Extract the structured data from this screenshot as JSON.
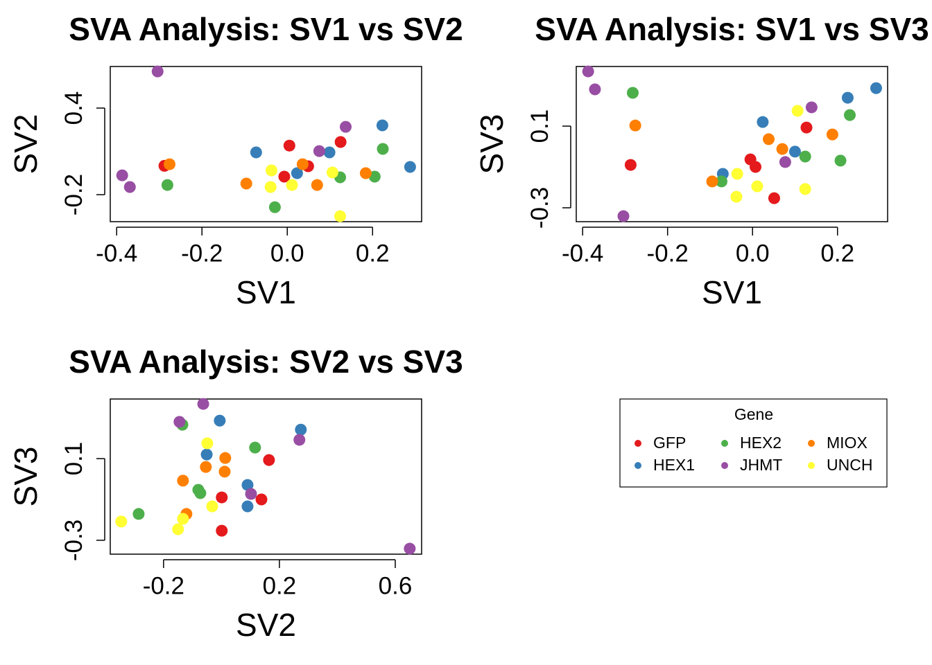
{
  "chart_data": [
    {
      "type": "scatter",
      "title": "SVA Analysis: SV1 vs SV2",
      "xlabel": "SV1",
      "ylabel": "SV2",
      "xlim": [
        -0.415,
        0.315
      ],
      "ylim": [
        -0.387,
        0.688
      ],
      "xticks": [
        -0.4,
        -0.2,
        {
          "value": 0,
          "label": "0.0"
        },
        0.2
      ],
      "yticks": [
        -0.2,
        0.4
      ],
      "series": [
        {
          "name": "GFP",
          "color": "#E41A1C",
          "x": [
            -0.288,
            0.005,
            0.125,
            0.049,
            -0.007
          ],
          "y": [
            0.0,
            0.14,
            0.165,
            -0.003,
            -0.075
          ]
        },
        {
          "name": "HEX1",
          "color": "#377EB8",
          "x": [
            -0.073,
            0.099,
            0.223,
            0.288,
            0.023
          ],
          "y": [
            0.093,
            0.093,
            0.28,
            -0.008,
            -0.051
          ]
        },
        {
          "name": "HEX2",
          "color": "#4DAF4A",
          "x": [
            -0.281,
            -0.029,
            0.124,
            0.205,
            0.224
          ],
          "y": [
            -0.133,
            -0.287,
            -0.08,
            -0.075,
            0.117
          ]
        },
        {
          "name": "JHMT",
          "color": "#984EA3",
          "x": [
            -0.304,
            -0.387,
            -0.369,
            0.075,
            0.137
          ],
          "y": [
            0.654,
            -0.066,
            -0.147,
            0.102,
            0.27
          ]
        },
        {
          "name": "MIOX",
          "color": "#FF7F00",
          "x": [
            -0.276,
            -0.096,
            0.036,
            0.07,
            0.184
          ],
          "y": [
            0.011,
            -0.123,
            0.011,
            -0.133,
            -0.051
          ]
        },
        {
          "name": "UNCH",
          "color": "#FFFF33",
          "x": [
            -0.037,
            -0.039,
            0.011,
            0.106,
            0.124
          ],
          "y": [
            -0.032,
            -0.147,
            -0.133,
            -0.046,
            -0.349
          ]
        }
      ]
    },
    {
      "type": "scatter",
      "title": "SVA Analysis: SV1 vs SV3",
      "xlabel": "SV1",
      "ylabel": "SV3",
      "xlim": [
        -0.415,
        0.318
      ],
      "ylim": [
        -0.368,
        0.392
      ],
      "xticks": [
        -0.4,
        -0.2,
        {
          "value": 0,
          "label": "0.0"
        },
        0.2
      ],
      "yticks": [
        -0.3,
        0.1
      ],
      "series": [
        {
          "name": "GFP",
          "color": "#E41A1C",
          "x": [
            -0.287,
            0.127,
            -0.005,
            0.007,
            0.051
          ],
          "y": [
            -0.09,
            0.093,
            -0.063,
            -0.1,
            -0.253
          ]
        },
        {
          "name": "HEX1",
          "color": "#377EB8",
          "x": [
            0.024,
            0.1,
            0.224,
            0.291,
            -0.07
          ],
          "y": [
            0.12,
            -0.025,
            0.239,
            0.286,
            -0.134
          ]
        },
        {
          "name": "HEX2",
          "color": "#4DAF4A",
          "x": [
            -0.282,
            0.124,
            0.229,
            0.207,
            -0.073
          ],
          "y": [
            0.263,
            -0.049,
            0.154,
            -0.069,
            -0.171
          ]
        },
        {
          "name": "JHMT",
          "color": "#984EA3",
          "x": [
            -0.387,
            -0.371,
            -0.304,
            0.077,
            0.139
          ],
          "y": [
            0.368,
            0.28,
            -0.341,
            -0.076,
            0.192
          ]
        },
        {
          "name": "MIOX",
          "color": "#FF7F00",
          "x": [
            -0.276,
            -0.095,
            0.038,
            0.07,
            0.188
          ],
          "y": [
            0.103,
            -0.171,
            0.036,
            -0.012,
            0.059
          ]
        },
        {
          "name": "UNCH",
          "color": "#FFFF33",
          "x": [
            0.106,
            -0.036,
            0.011,
            -0.038,
            0.124
          ],
          "y": [
            0.175,
            -0.134,
            -0.195,
            -0.246,
            -0.208
          ]
        }
      ]
    },
    {
      "type": "scatter",
      "title": "SVA Analysis: SV2 vs SV3",
      "xlabel": "SV2",
      "ylabel": "SV3",
      "xlim": [
        -0.384,
        0.691
      ],
      "ylim": [
        -0.368,
        0.392
      ],
      "xticks": [
        -0.2,
        0.2,
        0.6
      ],
      "yticks": [
        -0.3,
        0.1
      ],
      "series": [
        {
          "name": "GFP",
          "color": "#E41A1C",
          "x": [
            0.001,
            0.164,
            0.001,
            0.138
          ],
          "y": [
            -0.253,
            0.093,
            -0.09,
            -0.1
          ]
        },
        {
          "name": "HEX1",
          "color": "#377EB8",
          "x": [
            -0.006,
            0.274,
            -0.051,
            0.09,
            0.09
          ],
          "y": [
            0.286,
            0.242,
            0.12,
            -0.029,
            -0.134
          ]
        },
        {
          "name": "HEX2",
          "color": "#4DAF4A",
          "x": [
            -0.135,
            0.116,
            -0.286,
            -0.08,
            -0.073
          ],
          "y": [
            0.266,
            0.154,
            -0.171,
            -0.053,
            -0.069
          ]
        },
        {
          "name": "JHMT",
          "color": "#984EA3",
          "x": [
            -0.063,
            -0.145,
            0.269,
            0.102,
            0.65
          ],
          "y": [
            0.368,
            0.28,
            0.192,
            -0.073,
            -0.341
          ]
        },
        {
          "name": "MIOX",
          "color": "#FF7F00",
          "x": [
            0.013,
            -0.054,
            0.011,
            -0.133,
            -0.121
          ],
          "y": [
            0.103,
            0.059,
            0.036,
            -0.008,
            -0.171
          ]
        },
        {
          "name": "UNCH",
          "color": "#FFFF33",
          "x": [
            -0.049,
            -0.032,
            -0.346,
            -0.133,
            -0.15
          ],
          "y": [
            0.175,
            -0.134,
            -0.208,
            -0.195,
            -0.246
          ]
        }
      ]
    }
  ],
  "legend": {
    "title": "Gene"
  }
}
